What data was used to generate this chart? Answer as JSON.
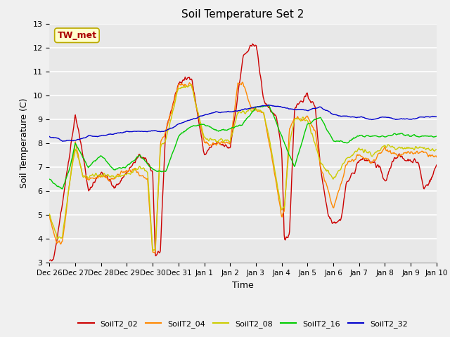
{
  "title": "Soil Temperature Set 2",
  "xlabel": "Time",
  "ylabel": "Soil Temperature (C)",
  "ylim": [
    3.0,
    13.0
  ],
  "yticks": [
    3.0,
    4.0,
    5.0,
    6.0,
    7.0,
    8.0,
    9.0,
    10.0,
    11.0,
    12.0,
    13.0
  ],
  "bg_color": "#e8e8e8",
  "grid_color": "#ffffff",
  "fig_color": "#f0f0f0",
  "annotation_label": "TW_met",
  "annotation_color": "#aa0000",
  "annotation_bg": "#ffffcc",
  "annotation_border": "#bbaa00",
  "series": {
    "SoilT2_02": {
      "color": "#cc0000",
      "lw": 1.0
    },
    "SoilT2_04": {
      "color": "#ff8800",
      "lw": 1.0
    },
    "SoilT2_08": {
      "color": "#cccc00",
      "lw": 1.0
    },
    "SoilT2_16": {
      "color": "#00cc00",
      "lw": 1.0
    },
    "SoilT2_32": {
      "color": "#0000cc",
      "lw": 1.0
    }
  },
  "x_tick_labels": [
    "Dec 26",
    "Dec 27",
    "Dec 28",
    "Dec 29",
    "Dec 30",
    "Dec 31",
    "Jan 1",
    "Jan 2",
    "Jan 3",
    "Jan 4",
    "Jan 5",
    "Jan 6",
    "Jan 7",
    "Jan 8",
    "Jan 9",
    "Jan 10"
  ],
  "x_tick_positions": [
    0,
    1,
    2,
    3,
    4,
    5,
    6,
    7,
    8,
    9,
    10,
    11,
    12,
    13,
    14,
    15
  ]
}
